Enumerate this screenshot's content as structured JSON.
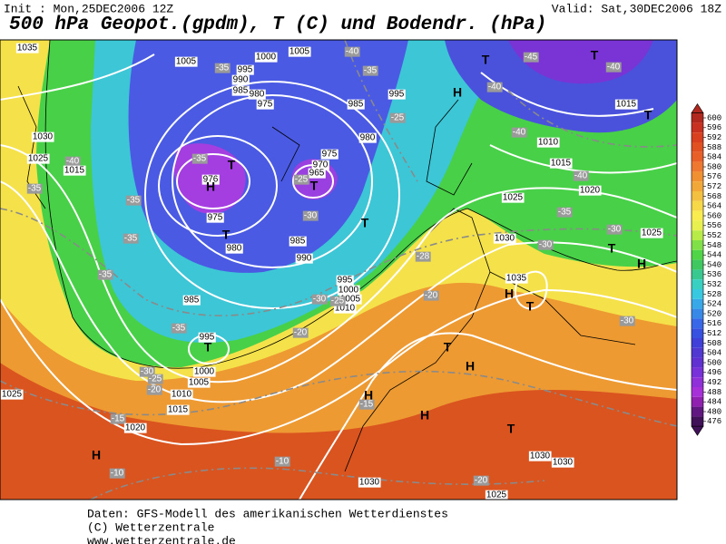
{
  "header": {
    "init": "Init : Mon,25DEC2006 12Z",
    "valid": "Valid: Sat,30DEC2006 18Z",
    "title": "500 hPa Geopot.(gpdm), T (C) und Bodendr. (hPa)"
  },
  "colorbar": {
    "ticks": [
      600,
      596,
      592,
      588,
      584,
      580,
      576,
      572,
      568,
      564,
      560,
      556,
      552,
      548,
      544,
      540,
      536,
      532,
      528,
      524,
      520,
      516,
      512,
      508,
      504,
      500,
      496,
      492,
      488,
      484,
      480,
      476
    ],
    "colors": [
      "#b0281e",
      "#c83020",
      "#d84020",
      "#e05020",
      "#e86028",
      "#ee7830",
      "#f09030",
      "#f2a838",
      "#f4c040",
      "#f6d848",
      "#f8ec50",
      "#e8f050",
      "#b8ea48",
      "#80e048",
      "#50d448",
      "#40c860",
      "#38c890",
      "#38d0c0",
      "#38c8e0",
      "#38a8e8",
      "#3888e8",
      "#3868e8",
      "#3850e0",
      "#4040d8",
      "#5038d0",
      "#6030d0",
      "#7830d8",
      "#9030d8",
      "#a830d8",
      "#9020b0",
      "#601880",
      "#401058"
    ]
  },
  "map": {
    "labels": [
      "1035",
      "1005",
      "1000",
      "1005",
      "-40",
      "-45",
      "T",
      "-40",
      "-35",
      "995",
      "990",
      "985",
      "980",
      "975",
      "-35",
      "T",
      "H",
      "-40",
      "995",
      "985",
      "-25",
      "1015",
      "T",
      "-40",
      "1010",
      "1030",
      "980",
      "975",
      "970",
      "965",
      "T",
      "T",
      "-35",
      "976",
      "H",
      "-40",
      "1025",
      "1015",
      "1015",
      "-40",
      "1020",
      "-35",
      "-35",
      "-25",
      "975",
      "T",
      "-30",
      "1025",
      "-35",
      "1025",
      "-30",
      "T",
      "H",
      "-35",
      "980",
      "T",
      "985",
      "990",
      "1030",
      "-30",
      "-28",
      "-35",
      "995",
      "1000",
      "1005",
      "1010",
      "-25",
      "-30",
      "985",
      "1035",
      "H",
      "T",
      "-20",
      "-30",
      "-35",
      "-20",
      "995",
      "T",
      "1000",
      "1005",
      "1010",
      "-30",
      "-25",
      "-20",
      "1015",
      "1025",
      "T",
      "H",
      "-15",
      "1020",
      "H",
      "-15",
      "H",
      "T",
      "H",
      "-10",
      "-10",
      "1030",
      "1030",
      "-20",
      "1030",
      "1025"
    ]
  },
  "footer": {
    "lines": [
      "Daten: GFS-Modell des amerikanischen Wetterdienstes",
      "(C) Wetterzentrale",
      "www.wetterzentrale.de"
    ]
  }
}
